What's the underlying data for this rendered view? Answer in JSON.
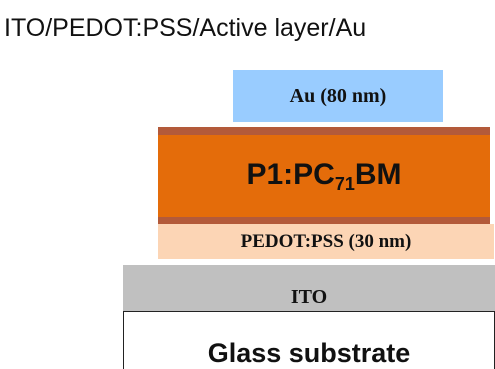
{
  "title": "ITO/PEDOT:PSS/Active layer/Au",
  "layers": {
    "au": {
      "label": "Au (80 nm)",
      "color": "#99ccff"
    },
    "active": {
      "label_main": "P1:PC",
      "label_sub": "71",
      "label_end": "BM",
      "color": "#e46c0a",
      "cap_color": "#b35a3a"
    },
    "pedot": {
      "label": "PEDOT:PSS (30 nm)",
      "color": "#fcd5b5"
    },
    "ito": {
      "label": "ITO",
      "color": "#c0c0c0"
    },
    "glass": {
      "label": "Glass substrate",
      "color": "#ffffff"
    }
  }
}
